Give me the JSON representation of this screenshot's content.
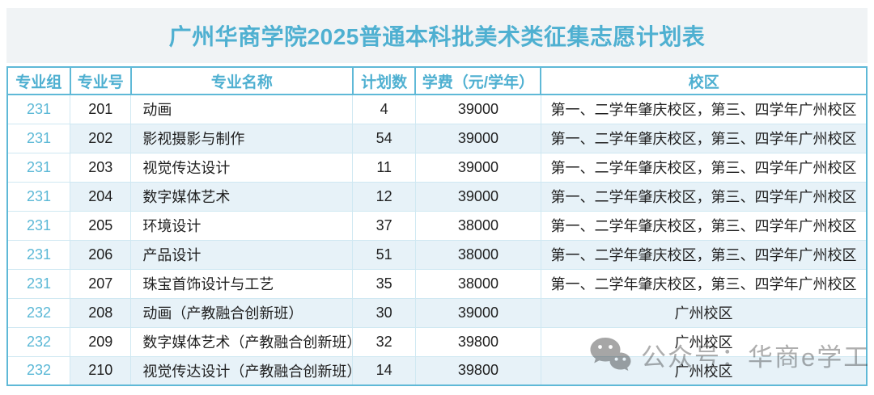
{
  "title": "广州华商学院2025普通本科批美术类征集志愿计划表",
  "table": {
    "headers": [
      "专业组",
      "专业号",
      "专业名称",
      "计划数",
      "学费（元/学年）",
      "校区"
    ],
    "rows": [
      [
        "231",
        "201",
        "动画",
        "4",
        "39000",
        "第一、二学年肇庆校区，第三、四学年广州校区"
      ],
      [
        "231",
        "202",
        "影视摄影与制作",
        "54",
        "39000",
        "第一、二学年肇庆校区，第三、四学年广州校区"
      ],
      [
        "231",
        "203",
        "视觉传达设计",
        "11",
        "39000",
        "第一、二学年肇庆校区，第三、四学年广州校区"
      ],
      [
        "231",
        "204",
        "数字媒体艺术",
        "12",
        "39000",
        "第一、二学年肇庆校区，第三、四学年广州校区"
      ],
      [
        "231",
        "205",
        "环境设计",
        "37",
        "38000",
        "第一、二学年肇庆校区，第三、四学年广州校区"
      ],
      [
        "231",
        "206",
        "产品设计",
        "51",
        "38000",
        "第一、二学年肇庆校区，第三、四学年广州校区"
      ],
      [
        "231",
        "207",
        "珠宝首饰设计与工艺",
        "35",
        "38000",
        "第一、二学年肇庆校区，第三、四学年广州校区"
      ],
      [
        "232",
        "208",
        "动画（产教融合创新班）",
        "30",
        "39000",
        "广州校区"
      ],
      [
        "232",
        "209",
        "数字媒体艺术（产教融合创新班）",
        "32",
        "39800",
        "广州校区"
      ],
      [
        "232",
        "210",
        "视觉传达设计（产教融合创新班）",
        "14",
        "39800",
        "广州校区"
      ]
    ]
  },
  "watermark": {
    "icon": "wechat-icon",
    "text": "公众号：华商e学工"
  },
  "colors": {
    "accent": "#4fb0d1",
    "row_number": "#5bb8d6",
    "outer_border": "#5fb9d7",
    "inner_border": "#cfe8f2",
    "row_alt_background": "#e7f2f8",
    "title_band_background": "#f0f3f5",
    "body_text": "#1f1f1f",
    "watermark_grey": "#aeaeae"
  }
}
